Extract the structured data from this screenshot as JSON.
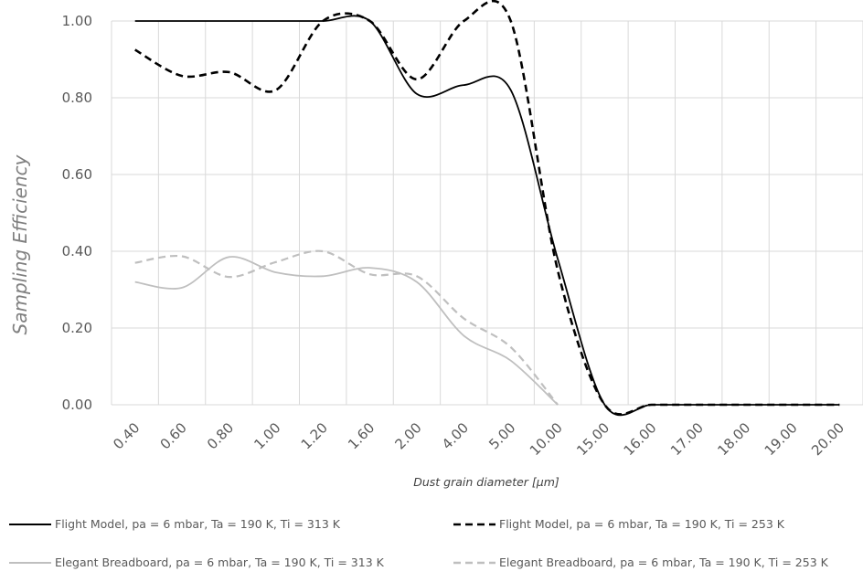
{
  "chart_data": {
    "type": "line",
    "title": "",
    "xlabel": "Dust grain diameter [μm]",
    "ylabel": "Sampling Efficiency",
    "categories": [
      "0.40",
      "0.60",
      "0.80",
      "1.00",
      "1.20",
      "1.60",
      "2.00",
      "4.00",
      "5.00",
      "10.00",
      "15.00",
      "16.00",
      "17.00",
      "18.00",
      "19.00",
      "20.00"
    ],
    "y_ticks": [
      "0.00",
      "0.20",
      "0.40",
      "0.60",
      "0.80",
      "1.00"
    ],
    "ylim": [
      0,
      1
    ],
    "grid": true,
    "legend_position": "bottom",
    "series": [
      {
        "name": "Flight Model, pa = 6 mbar, Ta = 190 K, Ti = 313 K",
        "color": "#000000",
        "dash": "solid",
        "values": [
          1.0,
          1.0,
          1.0,
          1.0,
          1.0,
          1.0,
          0.81,
          0.833,
          0.82,
          0.38,
          0.0,
          0.0,
          0.0,
          0.0,
          0.0,
          0.0
        ]
      },
      {
        "name": "Flight Model, pa = 6 mbar, Ta = 190 K, Ti = 253 K",
        "color": "#000000",
        "dash": "dashed",
        "values": [
          0.925,
          0.857,
          0.867,
          0.82,
          1.0,
          1.0,
          0.848,
          1.0,
          1.0,
          0.35,
          0.0,
          0.0,
          0.0,
          0.0,
          0.0,
          0.0
        ]
      },
      {
        "name": "Elegant Breadboard, pa = 6 mbar, Ta = 190 K, Ti = 313 K",
        "color": "#bfbfbf",
        "dash": "solid",
        "values": [
          0.32,
          0.305,
          0.385,
          0.345,
          0.335,
          0.357,
          0.32,
          0.18,
          0.115,
          0.0,
          null,
          null,
          null,
          null,
          null,
          null
        ]
      },
      {
        "name": "Elegant Breadboard, pa = 6 mbar, Ta = 190 K, Ti = 253 K",
        "color": "#bfbfbf",
        "dash": "dashed",
        "values": [
          0.37,
          0.387,
          0.333,
          0.372,
          0.4,
          0.34,
          0.335,
          0.225,
          0.15,
          0.0,
          null,
          null,
          null,
          null,
          null,
          null
        ]
      }
    ]
  }
}
